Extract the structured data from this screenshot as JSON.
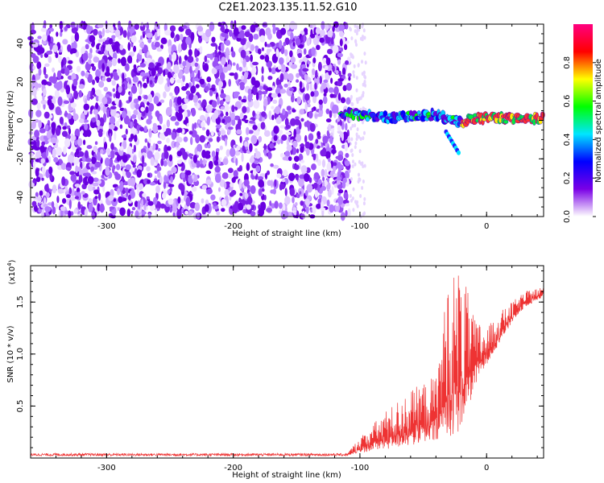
{
  "title": "C2E1.2023.135.11.52.G10",
  "chart_data": [
    {
      "type": "heatmap",
      "xlabel": "Height of straight line (km)",
      "ylabel": "Frequency (Hz)",
      "xlim": [
        -360,
        45
      ],
      "ylim": [
        -50,
        50
      ],
      "xticks": [
        "-300",
        "-200",
        "-100",
        "0"
      ],
      "yticks": [
        "-40",
        "-20",
        "0",
        "20",
        "40"
      ],
      "noise_region_x": [
        -360,
        -108
      ],
      "signal_track": {
        "x": [
          -115,
          -100,
          -80,
          -60,
          -40,
          -30,
          -20,
          -10,
          0,
          20,
          45
        ],
        "y": [
          4,
          3,
          1.5,
          2,
          3,
          1,
          -1,
          1,
          1,
          1,
          1
        ]
      },
      "colorbar": {
        "label": "Normalized spectral amplitude",
        "range": [
          0,
          1
        ],
        "ticks": [
          "0.0",
          "0.2",
          "0.4",
          "0.6",
          "0.8"
        ],
        "colors": [
          "#ffffff",
          "#7a00e6",
          "#0000ff",
          "#00e5ff",
          "#00ff00",
          "#ffff00",
          "#ff0000",
          "#ff0080"
        ]
      }
    },
    {
      "type": "line",
      "xlabel": "Height of straight line (km)",
      "ylabel": "SNR (10 * v/v)",
      "scale_label": "(x10",
      "scale_exp": "4",
      "xlim": [
        -360,
        45
      ],
      "ylim": [
        0,
        18500
      ],
      "xticks": [
        "-300",
        "-200",
        "-100",
        "0"
      ],
      "yticks": [
        "0.5",
        "1.0",
        "1.5"
      ],
      "color": "#ee3333",
      "envelope": {
        "x": [
          -360,
          -110,
          -100,
          -80,
          -60,
          -40,
          -30,
          -20,
          -15,
          -10,
          0,
          10,
          20,
          30,
          45
        ],
        "low": [
          200,
          200,
          500,
          800,
          1200,
          1500,
          2000,
          2500,
          4500,
          6500,
          9000,
          11000,
          13000,
          14500,
          15500
        ],
        "high": [
          450,
          450,
          2000,
          4500,
          6500,
          8000,
          17500,
          18500,
          16000,
          13500,
          12500,
          14000,
          15000,
          16000,
          16500
        ]
      }
    }
  ]
}
